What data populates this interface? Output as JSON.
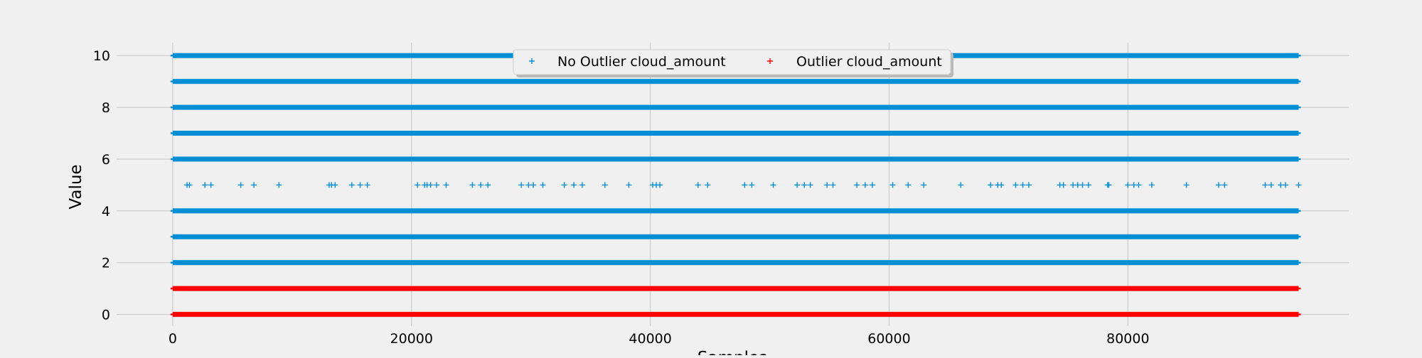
{
  "chart_data": {
    "type": "scatter",
    "title": "",
    "xlabel": "Samples",
    "ylabel": "Value",
    "xlim": [
      -4700,
      98500
    ],
    "ylim": [
      -0.45,
      10.5
    ],
    "x_ticks": [
      0,
      20000,
      40000,
      60000,
      80000
    ],
    "x_tick_labels": [
      "0",
      "20000",
      "40000",
      "60000",
      "80000"
    ],
    "y_ticks": [
      0,
      2,
      4,
      6,
      8,
      10
    ],
    "y_tick_labels": [
      "0",
      "2",
      "4",
      "6",
      "8",
      "10"
    ],
    "grid": true,
    "legend_position": "top-center",
    "marker": "+",
    "series": [
      {
        "name": "No Outlier cloud_amount",
        "color": "#008fd5",
        "dense_bands": [
          {
            "y": 10,
            "x_range": [
              0,
              94300
            ]
          },
          {
            "y": 9,
            "x_range": [
              0,
              94300
            ]
          },
          {
            "y": 8,
            "x_range": [
              0,
              94300
            ]
          },
          {
            "y": 7,
            "x_range": [
              0,
              94300
            ]
          },
          {
            "y": 6,
            "x_range": [
              0,
              94300
            ]
          },
          {
            "y": 4,
            "x_range": [
              0,
              94300
            ]
          },
          {
            "y": 3,
            "x_range": [
              0,
              94300
            ]
          },
          {
            "y": 2,
            "x_range": [
              0,
              94300
            ]
          }
        ],
        "points": [
          [
            1200,
            5
          ],
          [
            1400,
            5
          ],
          [
            2700,
            5
          ],
          [
            3200,
            5
          ],
          [
            5700,
            5
          ],
          [
            6800,
            5
          ],
          [
            8900,
            5
          ],
          [
            13100,
            5
          ],
          [
            13300,
            5
          ],
          [
            13600,
            5
          ],
          [
            15000,
            5
          ],
          [
            15700,
            5
          ],
          [
            16300,
            5
          ],
          [
            20500,
            5
          ],
          [
            21100,
            5
          ],
          [
            21300,
            5
          ],
          [
            21600,
            5
          ],
          [
            22100,
            5
          ],
          [
            22900,
            5
          ],
          [
            25100,
            5
          ],
          [
            25800,
            5
          ],
          [
            26400,
            5
          ],
          [
            29200,
            5
          ],
          [
            29800,
            5
          ],
          [
            30200,
            5
          ],
          [
            31000,
            5
          ],
          [
            32800,
            5
          ],
          [
            33600,
            5
          ],
          [
            34300,
            5
          ],
          [
            36200,
            5
          ],
          [
            38200,
            5
          ],
          [
            40200,
            5
          ],
          [
            40500,
            5
          ],
          [
            40800,
            5
          ],
          [
            44000,
            5
          ],
          [
            44800,
            5
          ],
          [
            47900,
            5
          ],
          [
            48500,
            5
          ],
          [
            50300,
            5
          ],
          [
            52300,
            5
          ],
          [
            52900,
            5
          ],
          [
            53400,
            5
          ],
          [
            54800,
            5
          ],
          [
            55300,
            5
          ],
          [
            57300,
            5
          ],
          [
            58000,
            5
          ],
          [
            58600,
            5
          ],
          [
            60300,
            5
          ],
          [
            61600,
            5
          ],
          [
            62900,
            5
          ],
          [
            66000,
            5
          ],
          [
            68500,
            5
          ],
          [
            69100,
            5
          ],
          [
            69400,
            5
          ],
          [
            70600,
            5
          ],
          [
            71200,
            5
          ],
          [
            71700,
            5
          ],
          [
            74300,
            5
          ],
          [
            74600,
            5
          ],
          [
            75400,
            5
          ],
          [
            75800,
            5
          ],
          [
            76200,
            5
          ],
          [
            76700,
            5
          ],
          [
            78300,
            5
          ],
          [
            78400,
            5
          ],
          [
            80000,
            5
          ],
          [
            80500,
            5
          ],
          [
            80900,
            5
          ],
          [
            82000,
            5
          ],
          [
            84900,
            5
          ],
          [
            87600,
            5
          ],
          [
            88100,
            5
          ],
          [
            91500,
            5
          ],
          [
            92000,
            5
          ],
          [
            92800,
            5
          ],
          [
            93200,
            5
          ],
          [
            94300,
            5
          ]
        ]
      },
      {
        "name": "Outlier cloud_amount",
        "color": "#ff0000",
        "dense_bands": [
          {
            "y": 1,
            "x_range": [
              0,
              94300
            ]
          },
          {
            "y": 0,
            "x_range": [
              0,
              94300
            ]
          }
        ],
        "points": []
      }
    ]
  }
}
